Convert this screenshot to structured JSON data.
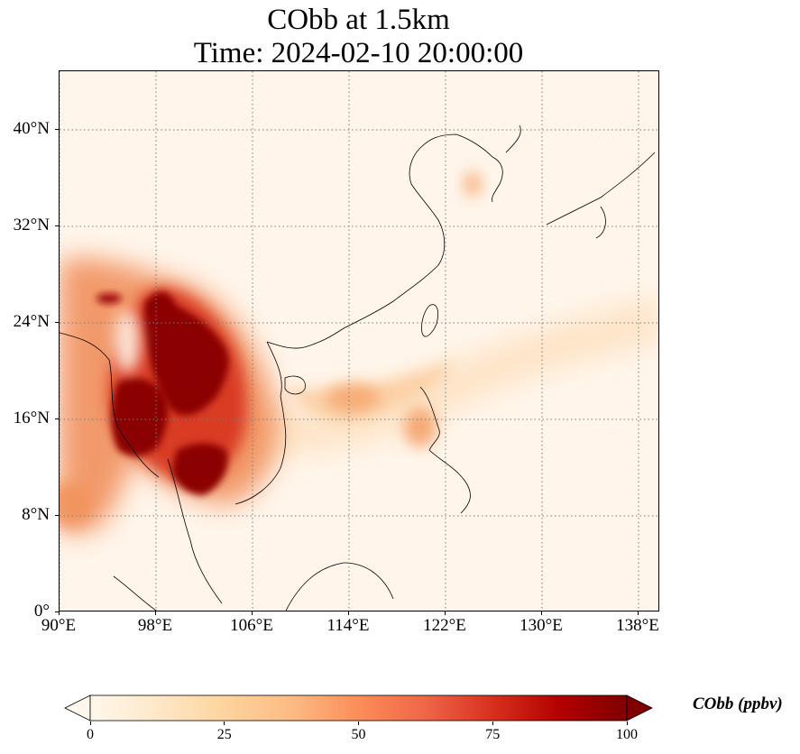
{
  "title": {
    "line1": "CObb at 1.5km",
    "line2": "Time: 2024-02-10 20:00:00"
  },
  "map": {
    "projection": "PlateCarree",
    "lon_range": [
      90,
      140
    ],
    "lat_range": [
      0,
      45
    ],
    "gridlines": "dotted gray",
    "colormap": "OrRd",
    "colormap_stops": [
      "#fff7ec",
      "#fee8c8",
      "#fdd49e",
      "#fdbb84",
      "#fc8d59",
      "#ef6548",
      "#d7301f",
      "#b30000",
      "#7f0000"
    ],
    "x_ticks": [
      {
        "value": 90,
        "label": "90°E"
      },
      {
        "value": 98,
        "label": "98°E"
      },
      {
        "value": 106,
        "label": "106°E"
      },
      {
        "value": 114,
        "label": "114°E"
      },
      {
        "value": 122,
        "label": "122°E"
      },
      {
        "value": 130,
        "label": "130°E"
      },
      {
        "value": 138,
        "label": "138°E"
      }
    ],
    "y_ticks": [
      {
        "value": 0,
        "label": "0°"
      },
      {
        "value": 8,
        "label": "8°N"
      },
      {
        "value": 16,
        "label": "16°N"
      },
      {
        "value": 24,
        "label": "24°N"
      },
      {
        "value": 32,
        "label": "32°N"
      },
      {
        "value": 40,
        "label": "40°N"
      }
    ]
  },
  "colorbar": {
    "label": "CObb (ppbv)",
    "vmin": 0,
    "vmax": 100,
    "extend": "both",
    "ticks": [
      {
        "value": 0,
        "label": "0"
      },
      {
        "value": 25,
        "label": "25"
      },
      {
        "value": 50,
        "label": "50"
      },
      {
        "value": 75,
        "label": "75"
      },
      {
        "value": 100,
        "label": "100"
      }
    ]
  }
}
